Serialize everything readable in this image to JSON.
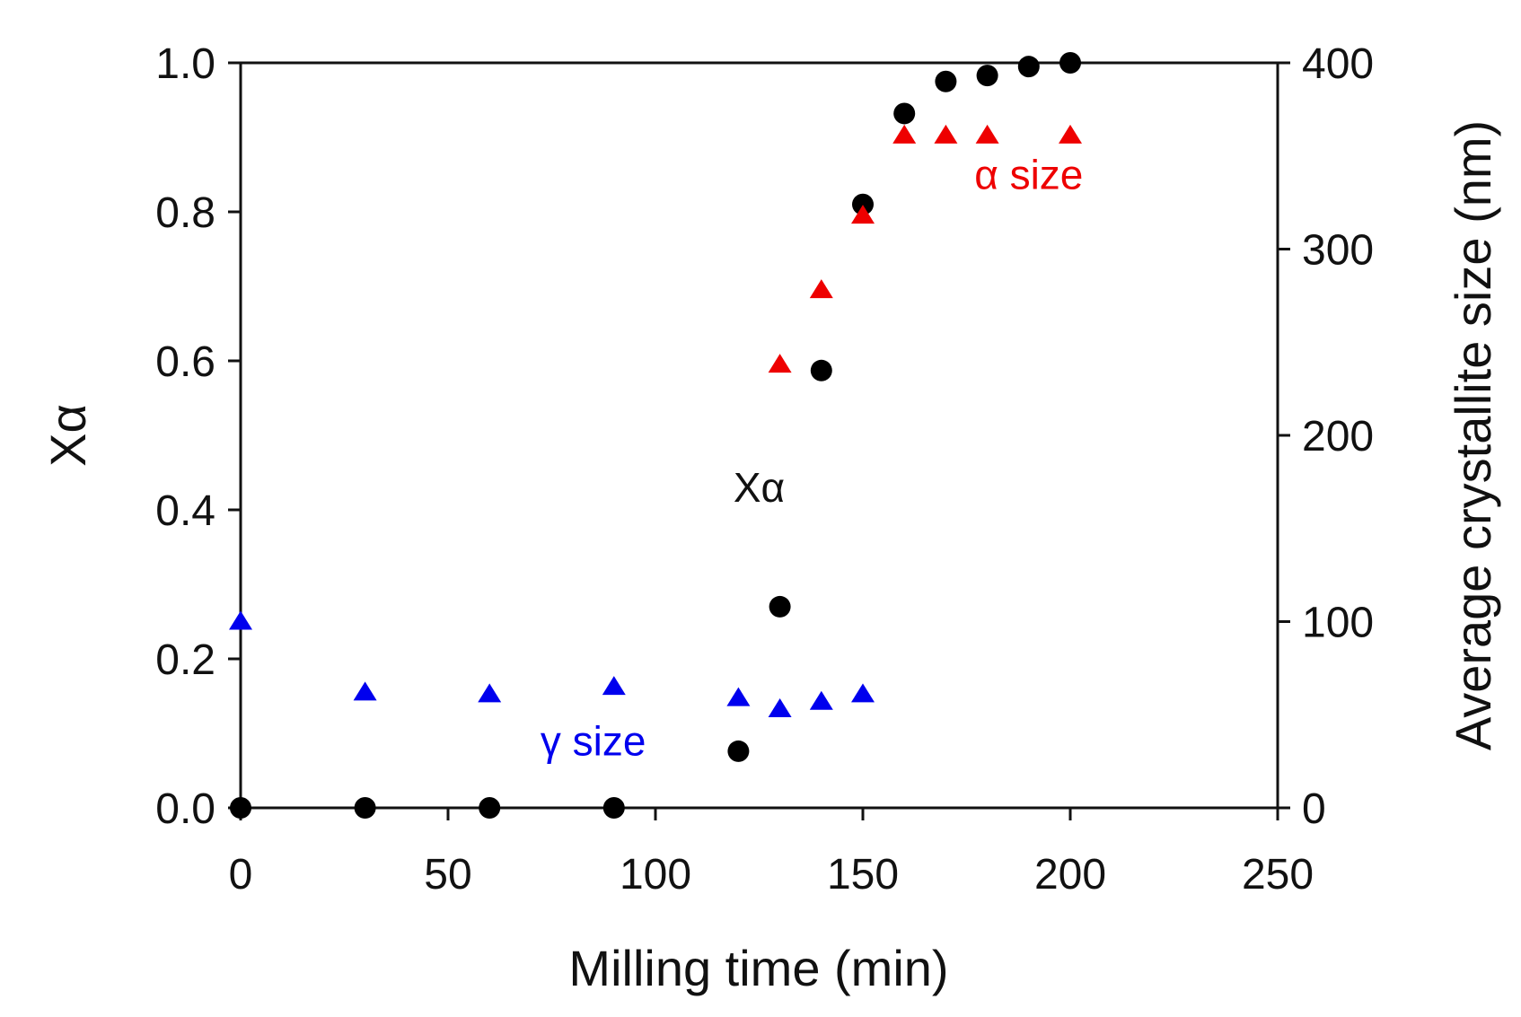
{
  "chart_data": {
    "type": "scatter",
    "xlabel": "Milling time (min)",
    "ylabel_left": "Xα",
    "ylabel_right": "Average crystallite size (nm)",
    "xlim": [
      0,
      250
    ],
    "ylim_left": [
      0,
      1.0
    ],
    "ylim_right": [
      0,
      400
    ],
    "x_ticks": [
      "0",
      "50",
      "100",
      "150",
      "200",
      "250"
    ],
    "y_left_ticks": [
      "0.0",
      "0.2",
      "0.4",
      "0.6",
      "0.8",
      "1.0"
    ],
    "y_right_ticks": [
      "0",
      "100",
      "200",
      "300",
      "400"
    ],
    "grid": false,
    "series": [
      {
        "name": "Xα",
        "axis": "left",
        "marker": "circle",
        "color": "#000000",
        "x": [
          0,
          30,
          60,
          90,
          120,
          130,
          140,
          150,
          160,
          170,
          180,
          190,
          200
        ],
        "y": [
          0.0,
          0.0,
          0.0,
          0.0,
          0.076,
          0.27,
          0.587,
          0.81,
          0.932,
          0.975,
          0.983,
          0.995,
          1.0
        ]
      },
      {
        "name": "α size",
        "axis": "right",
        "marker": "triangle",
        "color": "#ee0000",
        "x": [
          130,
          140,
          150,
          160,
          170,
          180,
          200
        ],
        "y": [
          238,
          278,
          318,
          361,
          361,
          361,
          361
        ]
      },
      {
        "name": "γ size",
        "axis": "right",
        "marker": "triangle",
        "color": "#0000ee",
        "x": [
          0,
          30,
          60,
          90,
          120,
          130,
          140,
          150
        ],
        "y": [
          100,
          62,
          61,
          65,
          59,
          53,
          57,
          61
        ]
      }
    ],
    "annotations": [
      {
        "text": "α size",
        "color": "#ee0000",
        "x": 190,
        "y_left": 0.85
      },
      {
        "text": "Xα",
        "color": "#111111",
        "x": 125,
        "y_left": 0.43
      },
      {
        "text": "γ size",
        "color": "#0000ee",
        "x": 85,
        "y_left": 0.09
      }
    ]
  }
}
